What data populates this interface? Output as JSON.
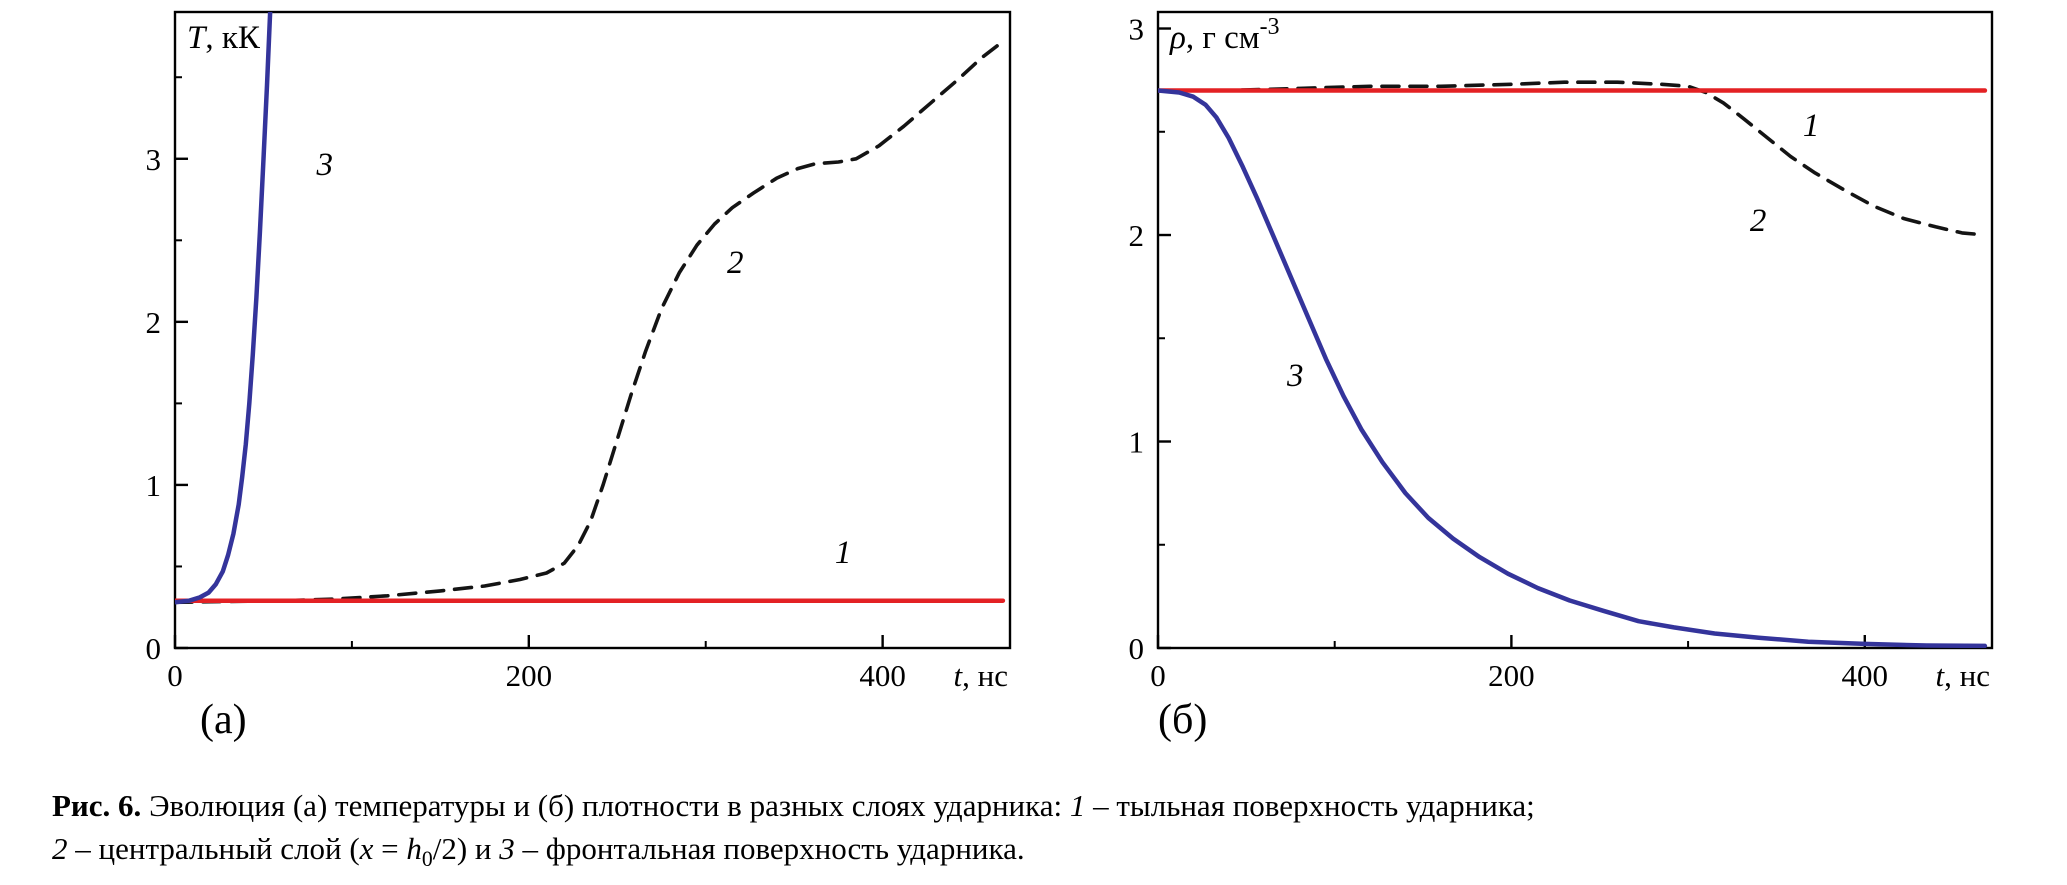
{
  "figure": {
    "panels": [
      {
        "sublabel": "(а)"
      },
      {
        "sublabel": "(б)"
      }
    ],
    "caption": {
      "text": "Рис. 6. Эволюция (а) температуры и (б) плотности в разных слоях ударника: 1 – тыльная поверхность ударника; 2 – центральный слой (x = h0/2) и 3 – фронтальная поверхность ударника.",
      "segments": [
        {
          "text": "Рис. 6.",
          "bold": true
        },
        {
          "text": " Эволюция (а) температуры и (б) плотности в разных слоях ударника: "
        },
        {
          "text": "1",
          "italic": true
        },
        {
          "text": " – тыльная поверхность ударника;"
        },
        {
          "break": true
        },
        {
          "text": "2",
          "italic": true
        },
        {
          "text": " – центральный слой ("
        },
        {
          "text": "x",
          "italic": true
        },
        {
          "text": " = "
        },
        {
          "text": "h",
          "italic": true
        },
        {
          "text": "0",
          "sub": true
        },
        {
          "text": "/2) и "
        },
        {
          "text": "3",
          "italic": true
        },
        {
          "text": " – фронтальная поверхность ударника."
        }
      ]
    }
  },
  "chart_data": [
    {
      "type": "line",
      "panel_label": "(а)",
      "ylabel": "T, кК",
      "xlabel": "t, нс",
      "ylabel_segments": [
        {
          "text": "T",
          "italic": true
        },
        {
          "text": ", кК"
        }
      ],
      "xlabel_segments": [
        {
          "text": "t",
          "italic": true
        },
        {
          "text": ", нс"
        }
      ],
      "xlim": [
        0,
        472
      ],
      "ylim": [
        0,
        3.9
      ],
      "x_ticks": {
        "major": [
          0,
          200,
          400
        ],
        "labels": [
          "0",
          "200",
          "400"
        ],
        "minor": [
          100,
          300
        ]
      },
      "y_ticks": {
        "major": [
          0,
          1,
          2,
          3
        ],
        "labels": [
          "0",
          "1",
          "2",
          "3"
        ],
        "minor": [
          0.5,
          1.5,
          2.5,
          3.5
        ]
      },
      "grid": false,
      "legend": "none",
      "series": [
        {
          "name": "1",
          "z": 2,
          "color": "#e32124",
          "width": 4.5,
          "dash": null,
          "label": {
            "text": "1",
            "x": 373,
            "y": 0.52
          },
          "points": [
            [
              0,
              0.29
            ],
            [
              468,
              0.29
            ]
          ]
        },
        {
          "name": "2",
          "z": 1,
          "color": "#141414",
          "width": 3.6,
          "dash": "17 11",
          "label": {
            "text": "2",
            "x": 312,
            "y": 2.3
          },
          "points": [
            [
              0,
              0.28
            ],
            [
              30,
              0.285
            ],
            [
              60,
              0.29
            ],
            [
              90,
              0.3
            ],
            [
              120,
              0.32
            ],
            [
              150,
              0.35
            ],
            [
              175,
              0.38
            ],
            [
              195,
              0.42
            ],
            [
              210,
              0.46
            ],
            [
              220,
              0.52
            ],
            [
              228,
              0.63
            ],
            [
              235,
              0.78
            ],
            [
              242,
              1.0
            ],
            [
              250,
              1.28
            ],
            [
              258,
              1.56
            ],
            [
              266,
              1.82
            ],
            [
              275,
              2.08
            ],
            [
              285,
              2.3
            ],
            [
              295,
              2.47
            ],
            [
              305,
              2.6
            ],
            [
              315,
              2.7
            ],
            [
              327,
              2.79
            ],
            [
              340,
              2.88
            ],
            [
              352,
              2.94
            ],
            [
              362,
              2.97
            ],
            [
              375,
              2.98
            ],
            [
              385,
              3.0
            ],
            [
              398,
              3.08
            ],
            [
              412,
              3.2
            ],
            [
              427,
              3.34
            ],
            [
              442,
              3.48
            ],
            [
              456,
              3.62
            ],
            [
              468,
              3.72
            ]
          ]
        },
        {
          "name": "3",
          "z": 3,
          "color": "#34349b",
          "width": 4.5,
          "dash": null,
          "label": {
            "text": "3",
            "x": 80,
            "y": 2.9
          },
          "points": [
            [
              0,
              0.28
            ],
            [
              8,
              0.29
            ],
            [
              14,
              0.31
            ],
            [
              19,
              0.34
            ],
            [
              23,
              0.39
            ],
            [
              27,
              0.47
            ],
            [
              30,
              0.57
            ],
            [
              33,
              0.7
            ],
            [
              36,
              0.88
            ],
            [
              38,
              1.05
            ],
            [
              40,
              1.25
            ],
            [
              42,
              1.5
            ],
            [
              44,
              1.8
            ],
            [
              46,
              2.15
            ],
            [
              48,
              2.55
            ],
            [
              50,
              3.0
            ],
            [
              52,
              3.45
            ],
            [
              54,
              3.95
            ]
          ]
        }
      ]
    },
    {
      "type": "line",
      "panel_label": "(б)",
      "ylabel": "ρ, г см-3",
      "xlabel": "t, нс",
      "ylabel_segments": [
        {
          "text": "ρ",
          "italic": true
        },
        {
          "text": ", г см"
        },
        {
          "text": "-3",
          "sup": true
        }
      ],
      "xlabel_segments": [
        {
          "text": "t",
          "italic": true
        },
        {
          "text": ", нс"
        }
      ],
      "xlim": [
        0,
        472
      ],
      "ylim": [
        0,
        3.08
      ],
      "x_ticks": {
        "major": [
          0,
          200,
          400
        ],
        "labels": [
          "0",
          "200",
          "400"
        ],
        "minor": [
          100,
          300
        ]
      },
      "y_ticks": {
        "major": [
          0,
          1,
          2,
          3
        ],
        "labels": [
          "0",
          "1",
          "2",
          "3"
        ],
        "minor": [
          0.5,
          1.5,
          2.5
        ]
      },
      "grid": false,
      "legend": "none",
      "series": [
        {
          "name": "1",
          "z": 2,
          "color": "#e32124",
          "width": 4.5,
          "dash": null,
          "label": {
            "text": "1",
            "x": 365,
            "y": 2.48
          },
          "points": [
            [
              0,
              2.7
            ],
            [
              468,
              2.7
            ]
          ]
        },
        {
          "name": "2",
          "z": 1,
          "color": "#141414",
          "width": 3.6,
          "dash": "17 11",
          "label": {
            "text": "2",
            "x": 335,
            "y": 2.02
          },
          "points": [
            [
              0,
              2.7
            ],
            [
              40,
              2.7
            ],
            [
              80,
              2.71
            ],
            [
              120,
              2.72
            ],
            [
              160,
              2.72
            ],
            [
              200,
              2.73
            ],
            [
              230,
              2.74
            ],
            [
              260,
              2.74
            ],
            [
              285,
              2.73
            ],
            [
              300,
              2.72
            ],
            [
              310,
              2.69
            ],
            [
              320,
              2.64
            ],
            [
              332,
              2.56
            ],
            [
              345,
              2.47
            ],
            [
              358,
              2.38
            ],
            [
              372,
              2.3
            ],
            [
              388,
              2.22
            ],
            [
              405,
              2.14
            ],
            [
              422,
              2.08
            ],
            [
              440,
              2.04
            ],
            [
              455,
              2.01
            ],
            [
              468,
              2.0
            ]
          ]
        },
        {
          "name": "3",
          "z": 3,
          "color": "#34349b",
          "width": 4.5,
          "dash": null,
          "label": {
            "text": "3",
            "x": 73,
            "y": 1.27
          },
          "points": [
            [
              0,
              2.7
            ],
            [
              12,
              2.69
            ],
            [
              20,
              2.67
            ],
            [
              27,
              2.63
            ],
            [
              33,
              2.57
            ],
            [
              40,
              2.47
            ],
            [
              48,
              2.33
            ],
            [
              56,
              2.18
            ],
            [
              65,
              2.0
            ],
            [
              75,
              1.8
            ],
            [
              85,
              1.6
            ],
            [
              95,
              1.4
            ],
            [
              105,
              1.22
            ],
            [
              115,
              1.06
            ],
            [
              127,
              0.9
            ],
            [
              140,
              0.75
            ],
            [
              153,
              0.63
            ],
            [
              167,
              0.53
            ],
            [
              182,
              0.44
            ],
            [
              198,
              0.36
            ],
            [
              215,
              0.29
            ],
            [
              233,
              0.23
            ],
            [
              252,
              0.18
            ],
            [
              272,
              0.13
            ],
            [
              292,
              0.1
            ],
            [
              315,
              0.07
            ],
            [
              340,
              0.05
            ],
            [
              368,
              0.03
            ],
            [
              400,
              0.02
            ],
            [
              435,
              0.012
            ],
            [
              468,
              0.01
            ]
          ]
        }
      ]
    }
  ]
}
